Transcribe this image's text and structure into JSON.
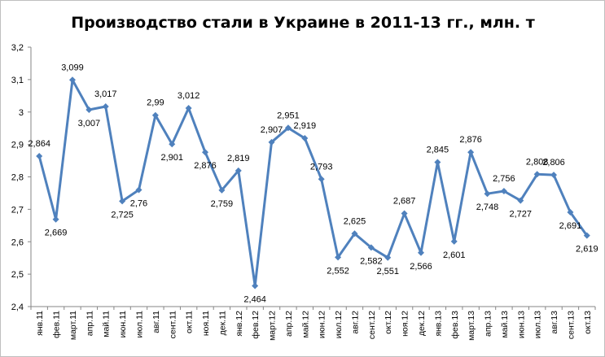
{
  "chart_data": {
    "type": "line",
    "title": "Производство стали в Украине в 2011-13 гг., млн. т",
    "ylim": [
      2.4,
      3.2
    ],
    "yticks": [
      "2,4",
      "2,5",
      "2,6",
      "2,7",
      "2,8",
      "2,9",
      "3",
      "3,1",
      "3,2"
    ],
    "grid": false,
    "legend": "none",
    "color": "#4f81bd",
    "categories": [
      "янв.11",
      "фев.11",
      "март.11",
      "апр.11",
      "май.11",
      "июн.11",
      "июл.11",
      "авг.11",
      "сент.11",
      "окт.11",
      "ноя.11",
      "дек.11",
      "янв.12",
      "фев.12",
      "март.12",
      "апр.12",
      "май.12",
      "июн.12",
      "июл.12",
      "авг.12",
      "сент.12",
      "окт.12",
      "ноя.12",
      "дек.12",
      "янв.13",
      "фев.13",
      "март.13",
      "апр.13",
      "май.13",
      "июн.13",
      "июл.13",
      "авг.13",
      "сент.13",
      "окт.13"
    ],
    "values": [
      2.864,
      2.669,
      3.099,
      3.007,
      3.017,
      2.725,
      2.76,
      2.99,
      2.901,
      3.012,
      2.876,
      2.759,
      2.819,
      2.464,
      2.907,
      2.951,
      2.919,
      2.793,
      2.552,
      2.625,
      2.582,
      2.551,
      2.687,
      2.566,
      2.845,
      2.601,
      2.876,
      2.748,
      2.756,
      2.727,
      2.808,
      2.806,
      2.691,
      2.619
    ],
    "labels": [
      "2,864",
      "2,669",
      "3,099",
      "3,007",
      "3,017",
      "2,725",
      "2,76",
      "2,99",
      "2,901",
      "3,012",
      "2,876",
      "2,759",
      "2,819",
      "2,464",
      "2,907",
      "2,951",
      "2,919",
      "2,793",
      "2,552",
      "2,625",
      "2,582",
      "2,551",
      "2,687",
      "2,566",
      "2,845",
      "2,601",
      "2,876",
      "2,748",
      "2,756",
      "2,727",
      "2,808",
      "2,806",
      "2,691",
      "2,619"
    ]
  }
}
